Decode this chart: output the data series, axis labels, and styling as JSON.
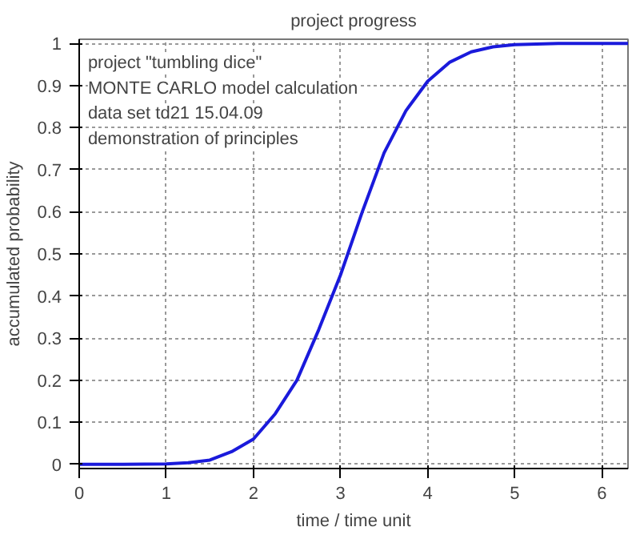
{
  "chart_data": {
    "type": "line",
    "title": "project progress",
    "xlabel": "time / time unit",
    "ylabel": "accumulated probability",
    "annotations": [
      "project \"tumbling dice\"",
      "MONTE CARLO model calculation",
      "data set td21 15.04.09",
      "demonstration of principles"
    ],
    "x": [
      0,
      0.5,
      1,
      1.25,
      1.5,
      1.75,
      2,
      2.25,
      2.5,
      2.75,
      3,
      3.25,
      3.5,
      3.75,
      4,
      4.25,
      4.5,
      4.75,
      5,
      5.5,
      6,
      6.3
    ],
    "series": [
      {
        "color": "#1a1adb",
        "values": [
          0,
          0,
          0.001,
          0.004,
          0.01,
          0.03,
          0.06,
          0.12,
          0.2,
          0.32,
          0.45,
          0.6,
          0.74,
          0.84,
          0.91,
          0.955,
          0.98,
          0.992,
          0.997,
          1,
          1,
          1
        ]
      }
    ],
    "xlim": [
      0,
      6.3
    ],
    "ylim": [
      -0.01,
      1.01
    ],
    "xticks": [
      0,
      1,
      2,
      3,
      4,
      5,
      6
    ],
    "yticks": [
      0,
      0.1,
      0.2,
      0.3,
      0.4,
      0.5,
      0.6,
      0.7,
      0.8,
      0.9,
      1
    ],
    "grid": true,
    "line_style": "solid"
  }
}
